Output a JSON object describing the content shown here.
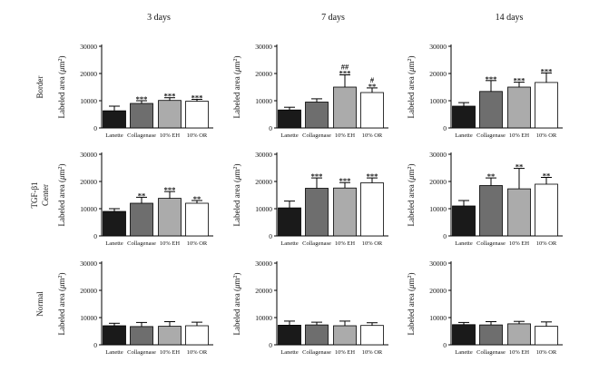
{
  "figure": {
    "column_headers": [
      "3 days",
      "7 days",
      "14 days"
    ],
    "row_headers": [
      {
        "lines": [
          "Border"
        ]
      },
      {
        "lines": [
          "TGF-β1",
          "Center"
        ]
      },
      {
        "lines": [
          "Normal"
        ]
      }
    ],
    "ylabel_text": "Labeled area (",
    "ylabel_unit_symbol": "μ",
    "ylabel_unit": "m",
    "ylabel_sup": "2",
    "ylabel_close": ")"
  },
  "colors": {
    "Lanette": "#1a1a1a",
    "Collagenase": "#6e6e6e",
    "10% EH": "#ababab",
    "10% OR": "#ffffff",
    "axis": "#000000"
  },
  "chart_data": [
    {
      "type": "bar",
      "row": "Border",
      "col": "3 days",
      "categories": [
        "Lanette",
        "Collagenase",
        "10% EH",
        "10% OR"
      ],
      "values": [
        6300,
        9000,
        10100,
        9800
      ],
      "errors": [
        1700,
        1000,
        1000,
        700
      ],
      "annotations": [
        "",
        "***",
        "***",
        "***"
      ],
      "yticks": [
        0,
        10000,
        20000,
        30000
      ],
      "ylim": [
        0,
        30000
      ]
    },
    {
      "type": "bar",
      "row": "Border",
      "col": "7 days",
      "categories": [
        "Lanette",
        "Collagenase",
        "10% EH",
        "10% OR"
      ],
      "values": [
        6600,
        9500,
        15000,
        13000
      ],
      "errors": [
        1000,
        1200,
        4500,
        1700
      ],
      "annotations": [
        "",
        "",
        "##\n***",
        "#\n**"
      ],
      "yticks": [
        0,
        10000,
        20000,
        30000
      ],
      "ylim": [
        0,
        30000
      ]
    },
    {
      "type": "bar",
      "row": "Border",
      "col": "14 days",
      "categories": [
        "Lanette",
        "Collagenase",
        "10% EH",
        "10% OR"
      ],
      "values": [
        8000,
        13400,
        15000,
        16700
      ],
      "errors": [
        1300,
        4000,
        1800,
        3500
      ],
      "annotations": [
        "",
        "***",
        "***",
        "***"
      ],
      "yticks": [
        0,
        10000,
        20000,
        30000
      ],
      "ylim": [
        0,
        30000
      ]
    },
    {
      "type": "bar",
      "row": "TGF-β1 Center",
      "col": "3 days",
      "categories": [
        "Lanette",
        "Collagenase",
        "10% EH",
        "10% OR"
      ],
      "values": [
        9000,
        12000,
        13800,
        12000
      ],
      "errors": [
        1000,
        2200,
        2500,
        1000
      ],
      "annotations": [
        "",
        "**",
        "***",
        "**"
      ],
      "yticks": [
        0,
        10000,
        20000,
        30000
      ],
      "ylim": [
        0,
        30000
      ]
    },
    {
      "type": "bar",
      "row": "TGF-β1 Center",
      "col": "7 days",
      "categories": [
        "Lanette",
        "Collagenase",
        "10% EH",
        "10% OR"
      ],
      "values": [
        10300,
        17500,
        17600,
        19500
      ],
      "errors": [
        2500,
        3800,
        2000,
        1800
      ],
      "annotations": [
        "",
        "***",
        "***",
        "***"
      ],
      "yticks": [
        0,
        10000,
        20000,
        30000
      ],
      "ylim": [
        0,
        30000
      ]
    },
    {
      "type": "bar",
      "row": "TGF-β1 Center",
      "col": "14 days",
      "categories": [
        "Lanette",
        "Collagenase",
        "10% EH",
        "10% OR"
      ],
      "values": [
        11000,
        18500,
        17300,
        19000
      ],
      "errors": [
        2000,
        2800,
        7500,
        2500
      ],
      "annotations": [
        "",
        "**",
        "**",
        "**"
      ],
      "yticks": [
        0,
        10000,
        20000,
        30000
      ],
      "ylim": [
        0,
        30000
      ]
    },
    {
      "type": "bar",
      "row": "Normal",
      "col": "3 days",
      "categories": [
        "Lanette",
        "Collagenase",
        "10% EH",
        "10% OR"
      ],
      "values": [
        7000,
        6700,
        6800,
        7000
      ],
      "errors": [
        900,
        1500,
        1700,
        1300
      ],
      "annotations": [
        "",
        "",
        "",
        ""
      ],
      "yticks": [
        0,
        10000,
        20000,
        30000
      ],
      "ylim": [
        0,
        30000
      ]
    },
    {
      "type": "bar",
      "row": "Normal",
      "col": "7 days",
      "categories": [
        "Lanette",
        "Collagenase",
        "10% EH",
        "10% OR"
      ],
      "values": [
        7200,
        7300,
        7000,
        7100
      ],
      "errors": [
        1500,
        1000,
        1700,
        1000
      ],
      "annotations": [
        "",
        "",
        "",
        ""
      ],
      "yticks": [
        0,
        10000,
        20000,
        30000
      ],
      "ylim": [
        0,
        30000
      ]
    },
    {
      "type": "bar",
      "row": "Normal",
      "col": "14 days",
      "categories": [
        "Lanette",
        "Collagenase",
        "10% EH",
        "10% OR"
      ],
      "values": [
        7400,
        7300,
        7700,
        6800
      ],
      "errors": [
        800,
        1200,
        900,
        1600
      ],
      "annotations": [
        "",
        "",
        "",
        ""
      ],
      "yticks": [
        0,
        10000,
        20000,
        30000
      ],
      "ylim": [
        0,
        30000
      ]
    }
  ]
}
